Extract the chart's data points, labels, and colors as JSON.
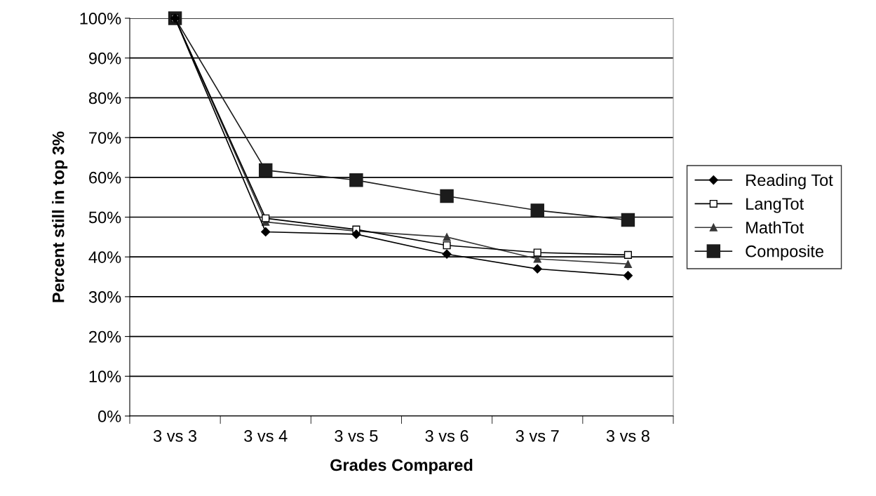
{
  "chart_data": {
    "type": "line",
    "xlabel": "Grades Compared",
    "ylabel": "Percent still in top 3%",
    "categories": [
      "3 vs 3",
      "3 vs 4",
      "3 vs 5",
      "3 vs 6",
      "3 vs 7",
      "3 vs 8"
    ],
    "series": [
      {
        "name": "Reading Tot",
        "color": "#000000",
        "marker": "diamond",
        "values": [
          100,
          46.3,
          45.7,
          40.7,
          37.0,
          35.3
        ]
      },
      {
        "name": "LangTot",
        "color": "#ffffff",
        "marker": "square",
        "values": [
          100,
          49.7,
          46.9,
          42.9,
          41.1,
          40.5
        ]
      },
      {
        "name": "MathTot",
        "color": "#383838",
        "marker": "triangle",
        "values": [
          100,
          48.8,
          46.5,
          45.0,
          39.5,
          38.2
        ]
      },
      {
        "name": "Composite",
        "color": "#1c1c1c",
        "marker": "square",
        "values": [
          100,
          61.8,
          59.3,
          55.3,
          51.7,
          49.3
        ]
      }
    ],
    "ylim": [
      0,
      100
    ],
    "yticks": [
      {
        "value": 0,
        "label": "0%"
      },
      {
        "value": 10,
        "label": "10%"
      },
      {
        "value": 20,
        "label": "20%"
      },
      {
        "value": 30,
        "label": "30%"
      },
      {
        "value": 40,
        "label": "40%"
      },
      {
        "value": 50,
        "label": "50%"
      },
      {
        "value": 60,
        "label": "60%"
      },
      {
        "value": 70,
        "label": "70%"
      },
      {
        "value": 80,
        "label": "80%"
      },
      {
        "value": 90,
        "label": "90%"
      },
      {
        "value": 100,
        "label": "100%"
      }
    ],
    "grid": "y",
    "legend": "right",
    "line_style": "solid"
  }
}
